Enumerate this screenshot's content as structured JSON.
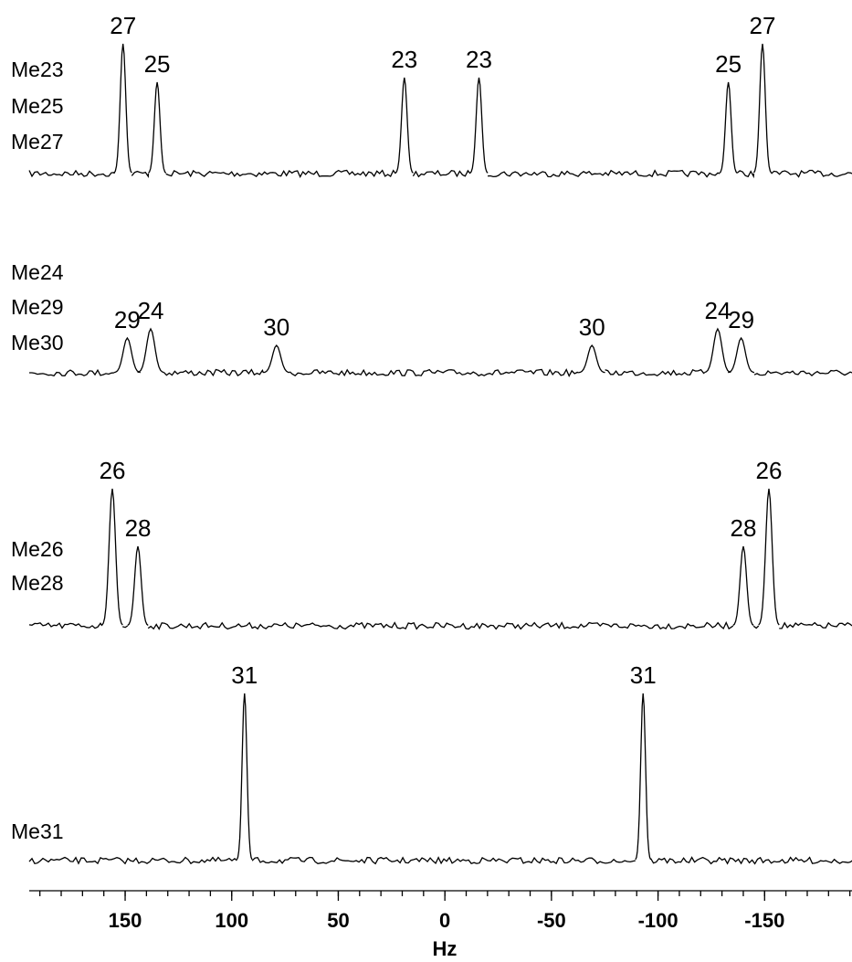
{
  "chart_data": {
    "type": "spectrum",
    "xlabel": "Hz",
    "xlim": [
      195,
      -191
    ],
    "xticks": [
      150,
      100,
      50,
      0,
      -50,
      -100,
      -150
    ],
    "xminor_step": 10,
    "traces": [
      {
        "labels": [
          "Me23",
          "Me25",
          "Me27"
        ],
        "peaks": [
          {
            "x": 151,
            "height": 142,
            "label": "27"
          },
          {
            "x": 135,
            "height": 100,
            "label": "25"
          },
          {
            "x": 19,
            "height": 105,
            "label": "23"
          },
          {
            "x": -16,
            "height": 105,
            "label": "23"
          },
          {
            "x": -133,
            "height": 100,
            "label": "25"
          },
          {
            "x": -149,
            "height": 142,
            "label": "27"
          }
        ]
      },
      {
        "labels": [
          "Me24",
          "Me29",
          "Me30"
        ],
        "peaks": [
          {
            "x": 149,
            "height": 38,
            "label": "29"
          },
          {
            "x": 138,
            "height": 48,
            "label": "24"
          },
          {
            "x": 79,
            "height": 30,
            "label": "30"
          },
          {
            "x": -69,
            "height": 30,
            "label": "30"
          },
          {
            "x": -128,
            "height": 48,
            "label": "24"
          },
          {
            "x": -139,
            "height": 38,
            "label": "29"
          }
        ]
      },
      {
        "labels": [
          "Me26",
          "Me28"
        ],
        "peaks": [
          {
            "x": 156,
            "height": 150,
            "label": "26"
          },
          {
            "x": 144,
            "height": 87,
            "label": "28"
          },
          {
            "x": -140,
            "height": 87,
            "label": "28"
          },
          {
            "x": -152,
            "height": 150,
            "label": "26"
          }
        ]
      },
      {
        "labels": [
          "Me31"
        ],
        "peaks": [
          {
            "x": 94,
            "height": 183,
            "label": "31"
          },
          {
            "x": -93,
            "height": 183,
            "label": "31"
          }
        ]
      }
    ]
  }
}
